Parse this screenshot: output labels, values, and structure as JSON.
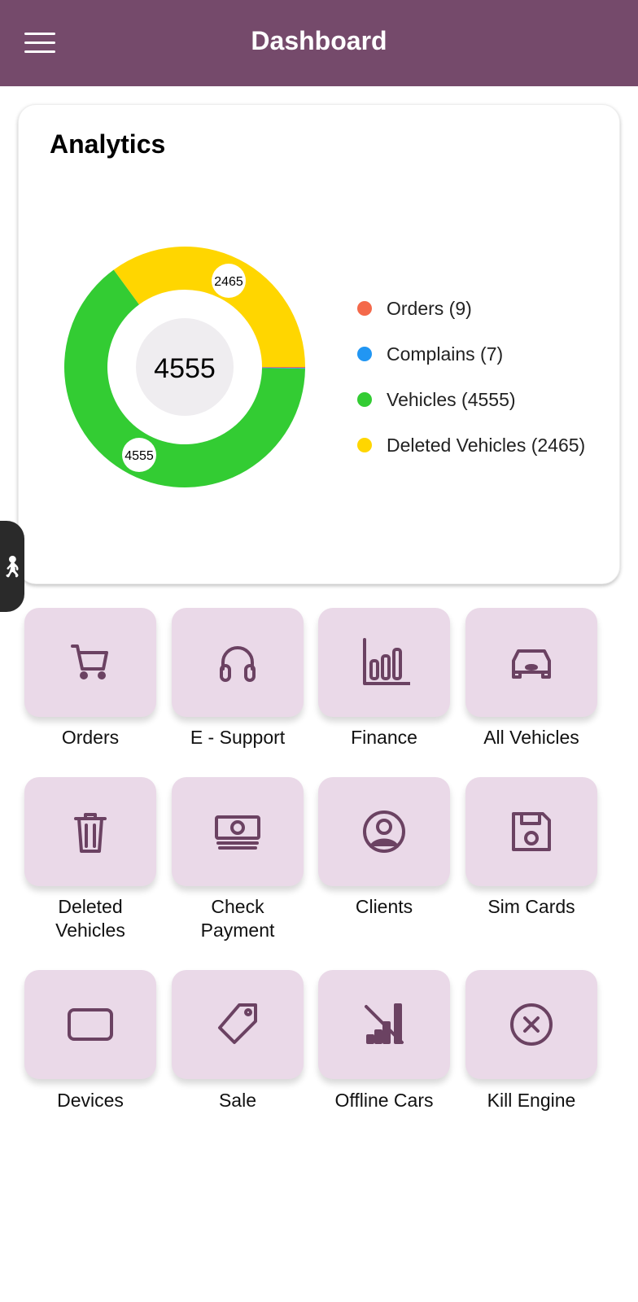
{
  "header": {
    "title": "Dashboard",
    "menu_icon": "hamburger-icon"
  },
  "analytics": {
    "title": "Analytics",
    "center_value": "4555",
    "slice_labels": [
      "2465",
      "4555"
    ],
    "legend": [
      "Orders (9)",
      "Complains (7)",
      "Vehicles (4555)",
      "Deleted Vehicles (2465)"
    ]
  },
  "chart_data": {
    "type": "pie",
    "title": "Analytics",
    "center_label": "4555",
    "categories": [
      "Orders",
      "Complains",
      "Vehicles",
      "Deleted Vehicles"
    ],
    "values": [
      9,
      7,
      4555,
      2465
    ],
    "colors": [
      "#f4694b",
      "#2196f3",
      "#33cc33",
      "#ffd600"
    ],
    "legend_placement": "right"
  },
  "tiles": [
    {
      "label": "Orders",
      "icon": "cart-icon"
    },
    {
      "label": "E - Support",
      "icon": "headphones-icon"
    },
    {
      "label": "Finance",
      "icon": "bar-chart-icon"
    },
    {
      "label": "All Vehicles",
      "icon": "car-icon"
    },
    {
      "label": "Deleted\nVehicles",
      "icon": "trash-icon"
    },
    {
      "label": "Check\nPayment",
      "icon": "money-icon"
    },
    {
      "label": "Clients",
      "icon": "user-circle-icon"
    },
    {
      "label": "Sim Cards",
      "icon": "save-icon"
    },
    {
      "label": "Devices",
      "icon": "rectangle-icon"
    },
    {
      "label": "Sale",
      "icon": "tag-icon"
    },
    {
      "label": "Offline Cars",
      "icon": "signal-off-icon"
    },
    {
      "label": "Kill Engine",
      "icon": "cancel-circle-icon"
    }
  ]
}
